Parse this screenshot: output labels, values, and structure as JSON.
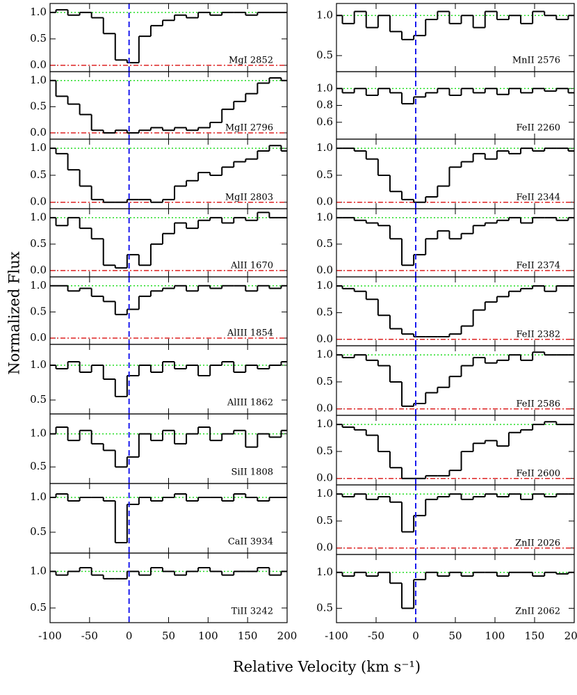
{
  "ylabel": "Normalized Flux",
  "xlabel": "Relative Velocity  (km s⁻¹)",
  "chart_data": [
    {
      "type": "line",
      "label": "MgI 2852",
      "x": [
        -100,
        -85,
        -70,
        -55,
        -40,
        -25,
        -10,
        5,
        20,
        35,
        50,
        65,
        80,
        95,
        110,
        125,
        140,
        155,
        170,
        185,
        200
      ],
      "values": [
        1.0,
        1.05,
        0.95,
        1.0,
        0.9,
        0.6,
        0.1,
        0.05,
        0.55,
        0.75,
        0.85,
        0.95,
        0.9,
        1.0,
        0.95,
        1.0,
        1.0,
        0.95,
        1.0,
        1.0,
        1.0
      ],
      "xlim": [
        -100,
        200
      ],
      "xticks": [
        -100,
        -50,
        0,
        50,
        100,
        150,
        200
      ],
      "ylim": [
        -0.12,
        1.17
      ],
      "yticks": [
        {
          "value": 0,
          "label": "0.0"
        },
        0.5,
        {
          "value": 1,
          "label": "1.0"
        }
      ]
    },
    {
      "type": "line",
      "label": "MgII 2796",
      "x": [
        -100,
        -85,
        -70,
        -55,
        -40,
        -25,
        -10,
        5,
        20,
        35,
        50,
        65,
        80,
        95,
        110,
        125,
        140,
        155,
        170,
        185,
        200
      ],
      "values": [
        1.0,
        0.7,
        0.55,
        0.35,
        0.05,
        0.0,
        0.05,
        0.0,
        0.05,
        0.1,
        0.05,
        0.1,
        0.05,
        0.1,
        0.2,
        0.45,
        0.6,
        0.75,
        0.95,
        1.05,
        1.0
      ],
      "xlim": [
        -100,
        200
      ],
      "xticks": [
        -100,
        -50,
        0,
        50,
        100,
        150,
        200
      ],
      "ylim": [
        -0.12,
        1.17
      ],
      "yticks": [
        {
          "value": 0,
          "label": "0.0"
        },
        0.5,
        {
          "value": 1,
          "label": "1.0"
        }
      ]
    },
    {
      "type": "line",
      "label": "MgII 2803",
      "x": [
        -100,
        -85,
        -70,
        -55,
        -40,
        -25,
        -10,
        5,
        20,
        35,
        50,
        65,
        80,
        95,
        110,
        125,
        140,
        155,
        170,
        185,
        200
      ],
      "values": [
        1.0,
        0.9,
        0.6,
        0.3,
        0.05,
        0.0,
        0.0,
        0.05,
        0.05,
        0.0,
        0.05,
        0.3,
        0.4,
        0.55,
        0.5,
        0.65,
        0.75,
        0.8,
        0.95,
        1.05,
        0.95
      ],
      "xlim": [
        -100,
        200
      ],
      "xticks": [
        -100,
        -50,
        0,
        50,
        100,
        150,
        200
      ],
      "ylim": [
        -0.12,
        1.17
      ],
      "yticks": [
        {
          "value": 0,
          "label": "0.0"
        },
        0.5,
        {
          "value": 1,
          "label": "1.0"
        }
      ]
    },
    {
      "type": "line",
      "label": "AlII 1670",
      "x": [
        -100,
        -85,
        -70,
        -55,
        -40,
        -25,
        -10,
        5,
        20,
        35,
        50,
        65,
        80,
        95,
        110,
        125,
        140,
        155,
        170,
        185,
        200
      ],
      "values": [
        1.0,
        0.85,
        1.0,
        0.8,
        0.6,
        0.1,
        0.05,
        0.3,
        0.1,
        0.5,
        0.7,
        0.9,
        0.8,
        0.95,
        1.0,
        0.9,
        1.0,
        0.95,
        1.1,
        1.0,
        1.0
      ],
      "xlim": [
        -100,
        200
      ],
      "xticks": [
        -100,
        -50,
        0,
        50,
        100,
        150,
        200
      ],
      "ylim": [
        -0.12,
        1.17
      ],
      "yticks": [
        {
          "value": 0,
          "label": "0.0"
        },
        0.5,
        {
          "value": 1,
          "label": "1.0"
        }
      ]
    },
    {
      "type": "line",
      "label": "AlIII 1854",
      "x": [
        -100,
        -85,
        -70,
        -55,
        -40,
        -25,
        -10,
        5,
        20,
        35,
        50,
        65,
        80,
        95,
        110,
        125,
        140,
        155,
        170,
        185,
        200
      ],
      "values": [
        1.0,
        1.0,
        0.9,
        0.95,
        0.8,
        0.7,
        0.45,
        0.55,
        0.8,
        0.9,
        0.95,
        1.0,
        0.9,
        1.0,
        0.95,
        1.0,
        1.0,
        0.9,
        1.0,
        0.95,
        1.0
      ],
      "xlim": [
        -100,
        200
      ],
      "xticks": [
        -100,
        -50,
        0,
        50,
        100,
        150,
        200
      ],
      "ylim": [
        -0.12,
        1.17
      ],
      "yticks": [
        {
          "value": 0,
          "label": "0.0"
        },
        0.5,
        {
          "value": 1,
          "label": "1.0"
        }
      ]
    },
    {
      "type": "line",
      "label": "AlIII 1862",
      "x": [
        -100,
        -85,
        -70,
        -55,
        -40,
        -25,
        -10,
        5,
        20,
        35,
        50,
        65,
        80,
        95,
        110,
        125,
        140,
        155,
        170,
        185,
        200
      ],
      "values": [
        1.0,
        0.95,
        1.05,
        0.9,
        1.0,
        0.8,
        0.55,
        0.85,
        1.0,
        0.9,
        1.05,
        0.95,
        1.0,
        0.85,
        1.0,
        1.05,
        0.9,
        1.0,
        0.95,
        1.0,
        1.05
      ],
      "xlim": [
        -100,
        200
      ],
      "xticks": [
        -100,
        -50,
        0,
        50,
        100,
        150,
        200
      ],
      "ylim": [
        0.3,
        1.3
      ],
      "yticks": [
        0.5,
        {
          "value": 1,
          "label": "1.0"
        }
      ]
    },
    {
      "type": "line",
      "label": "SiII 1808",
      "x": [
        -100,
        -85,
        -70,
        -55,
        -40,
        -25,
        -10,
        5,
        20,
        35,
        50,
        65,
        80,
        95,
        110,
        125,
        140,
        155,
        170,
        185,
        200
      ],
      "values": [
        1.0,
        1.1,
        0.9,
        1.05,
        0.85,
        0.75,
        0.5,
        0.65,
        1.0,
        0.9,
        1.05,
        0.85,
        1.0,
        1.1,
        0.9,
        1.0,
        1.05,
        0.8,
        1.0,
        0.95,
        1.05
      ],
      "xlim": [
        -100,
        200
      ],
      "xticks": [
        -100,
        -50,
        0,
        50,
        100,
        150,
        200
      ],
      "ylim": [
        0.25,
        1.3
      ],
      "yticks": [
        0.5,
        {
          "value": 1,
          "label": "1.0"
        }
      ]
    },
    {
      "type": "line",
      "label": "CaII 3934",
      "x": [
        -100,
        -85,
        -70,
        -55,
        -40,
        -25,
        -10,
        5,
        20,
        35,
        50,
        65,
        80,
        95,
        110,
        125,
        140,
        155,
        170,
        185,
        200
      ],
      "values": [
        1.0,
        1.05,
        0.95,
        1.0,
        1.0,
        0.95,
        0.35,
        0.9,
        1.0,
        0.95,
        1.0,
        1.05,
        0.95,
        1.0,
        1.0,
        0.95,
        1.05,
        1.0,
        0.95,
        1.0,
        1.0
      ],
      "xlim": [
        -100,
        200
      ],
      "xticks": [
        -100,
        -50,
        0,
        50,
        100,
        150,
        200
      ],
      "ylim": [
        0.2,
        1.2
      ],
      "yticks": [
        0.5,
        {
          "value": 1,
          "label": "1.0"
        }
      ]
    },
    {
      "type": "line",
      "label": "TiII 3242",
      "x": [
        -100,
        -85,
        -70,
        -55,
        -40,
        -25,
        -10,
        5,
        20,
        35,
        50,
        65,
        80,
        95,
        110,
        125,
        140,
        155,
        170,
        185,
        200
      ],
      "values": [
        1.0,
        0.95,
        1.0,
        1.05,
        0.95,
        0.9,
        0.9,
        1.0,
        0.95,
        1.05,
        1.0,
        0.95,
        1.0,
        1.05,
        1.0,
        0.95,
        1.0,
        1.0,
        1.05,
        0.95,
        1.0
      ],
      "xlim": [
        -100,
        200
      ],
      "xticks": [
        -100,
        -50,
        0,
        50,
        100,
        150,
        200
      ],
      "ylim": [
        0.3,
        1.25
      ],
      "yticks": [
        0.5,
        {
          "value": 1,
          "label": "1.0"
        }
      ]
    },
    {
      "type": "line",
      "label": "MnII 2576",
      "x": [
        -100,
        -85,
        -70,
        -55,
        -40,
        -25,
        -10,
        5,
        20,
        35,
        50,
        65,
        80,
        95,
        110,
        125,
        140,
        155,
        170,
        185,
        200
      ],
      "values": [
        1.0,
        0.9,
        1.05,
        0.85,
        1.0,
        0.8,
        0.7,
        0.75,
        0.95,
        1.05,
        0.9,
        1.0,
        0.85,
        1.05,
        0.95,
        1.0,
        0.9,
        1.05,
        1.0,
        0.95,
        1.0
      ],
      "xlim": [
        -100,
        200
      ],
      "xticks": [
        -100,
        -50,
        0,
        50,
        100,
        150,
        200
      ],
      "ylim": [
        0.3,
        1.15
      ],
      "yticks": [
        0.5,
        {
          "value": 1,
          "label": "1.0"
        }
      ]
    },
    {
      "type": "line",
      "label": "FeII 2260",
      "x": [
        -100,
        -85,
        -70,
        -55,
        -40,
        -25,
        -10,
        5,
        20,
        35,
        50,
        65,
        80,
        95,
        110,
        125,
        140,
        155,
        170,
        185,
        200
      ],
      "values": [
        1.0,
        0.95,
        1.0,
        0.92,
        1.0,
        0.95,
        0.82,
        0.9,
        0.95,
        1.0,
        0.92,
        1.0,
        0.95,
        1.0,
        0.93,
        1.0,
        0.95,
        1.0,
        0.97,
        1.0,
        0.95
      ],
      "xlim": [
        -100,
        200
      ],
      "xticks": [
        -100,
        -50,
        0,
        50,
        100,
        150,
        200
      ],
      "ylim": [
        0.4,
        1.2
      ],
      "yticks": [
        0.6,
        0.8,
        {
          "value": 1,
          "label": "1.0"
        }
      ]
    },
    {
      "type": "line",
      "label": "FeII 2344",
      "x": [
        -100,
        -85,
        -70,
        -55,
        -40,
        -25,
        -10,
        5,
        20,
        35,
        50,
        65,
        80,
        95,
        110,
        125,
        140,
        155,
        170,
        185,
        200
      ],
      "values": [
        1.0,
        1.0,
        0.95,
        0.8,
        0.5,
        0.2,
        0.05,
        0.0,
        0.1,
        0.3,
        0.65,
        0.75,
        0.9,
        0.8,
        0.95,
        0.9,
        1.0,
        0.95,
        1.0,
        1.0,
        0.95
      ],
      "xlim": [
        -100,
        200
      ],
      "xticks": [
        -100,
        -50,
        0,
        50,
        100,
        150,
        200
      ],
      "ylim": [
        -0.12,
        1.17
      ],
      "yticks": [
        {
          "value": 0,
          "label": "0.0"
        },
        0.5,
        {
          "value": 1,
          "label": "1.0"
        }
      ]
    },
    {
      "type": "line",
      "label": "FeII 2374",
      "x": [
        -100,
        -85,
        -70,
        -55,
        -40,
        -25,
        -10,
        5,
        20,
        35,
        50,
        65,
        80,
        95,
        110,
        125,
        140,
        155,
        170,
        185,
        200
      ],
      "values": [
        1.0,
        1.0,
        0.95,
        0.9,
        0.85,
        0.6,
        0.1,
        0.3,
        0.6,
        0.75,
        0.6,
        0.7,
        0.85,
        0.9,
        0.95,
        1.0,
        0.9,
        1.0,
        1.0,
        0.95,
        1.0
      ],
      "xlim": [
        -100,
        200
      ],
      "xticks": [
        -100,
        -50,
        0,
        50,
        100,
        150,
        200
      ],
      "ylim": [
        -0.12,
        1.17
      ],
      "yticks": [
        {
          "value": 0,
          "label": "0.0"
        },
        0.5,
        {
          "value": 1,
          "label": "1.0"
        }
      ]
    },
    {
      "type": "line",
      "label": "FeII 2382",
      "x": [
        -100,
        -85,
        -70,
        -55,
        -40,
        -25,
        -10,
        5,
        20,
        35,
        50,
        65,
        80,
        95,
        110,
        125,
        140,
        155,
        170,
        185,
        200
      ],
      "values": [
        1.0,
        0.95,
        0.9,
        0.75,
        0.45,
        0.2,
        0.1,
        0.05,
        0.05,
        0.05,
        0.1,
        0.25,
        0.55,
        0.7,
        0.8,
        0.9,
        0.95,
        1.0,
        0.9,
        1.0,
        1.0
      ],
      "xlim": [
        -100,
        200
      ],
      "xticks": [
        -100,
        -50,
        0,
        50,
        100,
        150,
        200
      ],
      "ylim": [
        -0.12,
        1.17
      ],
      "yticks": [
        {
          "value": 0,
          "label": "0.0"
        },
        0.5,
        {
          "value": 1,
          "label": "1.0"
        }
      ]
    },
    {
      "type": "line",
      "label": "FeII 2586",
      "x": [
        -100,
        -85,
        -70,
        -55,
        -40,
        -25,
        -10,
        5,
        20,
        35,
        50,
        65,
        80,
        95,
        110,
        125,
        140,
        155,
        170,
        185,
        200
      ],
      "values": [
        1.0,
        0.95,
        1.0,
        0.9,
        0.8,
        0.5,
        0.05,
        0.1,
        0.3,
        0.4,
        0.6,
        0.8,
        0.95,
        0.85,
        0.9,
        1.0,
        0.9,
        1.05,
        1.0,
        1.0,
        1.0
      ],
      "xlim": [
        -100,
        200
      ],
      "xticks": [
        -100,
        -50,
        0,
        50,
        100,
        150,
        200
      ],
      "ylim": [
        -0.12,
        1.17
      ],
      "yticks": [
        {
          "value": 0,
          "label": "0.0"
        },
        0.5,
        {
          "value": 1,
          "label": "1.0"
        }
      ]
    },
    {
      "type": "line",
      "label": "FeII 2600",
      "x": [
        -100,
        -85,
        -70,
        -55,
        -40,
        -25,
        -10,
        5,
        20,
        35,
        50,
        65,
        80,
        95,
        110,
        125,
        140,
        155,
        170,
        185,
        200
      ],
      "values": [
        1.0,
        0.95,
        0.9,
        0.8,
        0.5,
        0.2,
        0.0,
        0.0,
        0.05,
        0.05,
        0.15,
        0.5,
        0.65,
        0.7,
        0.6,
        0.85,
        0.9,
        1.0,
        1.05,
        1.0,
        1.0
      ],
      "xlim": [
        -100,
        200
      ],
      "xticks": [
        -100,
        -50,
        0,
        50,
        100,
        150,
        200
      ],
      "ylim": [
        -0.12,
        1.17
      ],
      "yticks": [
        {
          "value": 0,
          "label": "0.0"
        },
        0.5,
        {
          "value": 1,
          "label": "1.0"
        }
      ]
    },
    {
      "type": "line",
      "label": "ZnII 2026",
      "x": [
        -100,
        -85,
        -70,
        -55,
        -40,
        -25,
        -10,
        5,
        20,
        35,
        50,
        65,
        80,
        95,
        110,
        125,
        140,
        155,
        170,
        185,
        200
      ],
      "values": [
        1.0,
        0.95,
        1.0,
        0.9,
        0.95,
        0.85,
        0.3,
        0.6,
        0.9,
        0.95,
        1.0,
        0.9,
        0.95,
        1.0,
        0.95,
        1.0,
        0.9,
        1.0,
        0.95,
        1.0,
        1.0
      ],
      "xlim": [
        -100,
        200
      ],
      "xticks": [
        -100,
        -50,
        0,
        50,
        100,
        150,
        200
      ],
      "ylim": [
        -0.12,
        1.17
      ],
      "yticks": [
        {
          "value": 0,
          "label": "0.0"
        },
        0.5,
        {
          "value": 1,
          "label": "1.0"
        }
      ]
    },
    {
      "type": "line",
      "label": "ZnII 2062",
      "x": [
        -100,
        -85,
        -70,
        -55,
        -40,
        -25,
        -10,
        5,
        20,
        35,
        50,
        65,
        80,
        95,
        110,
        125,
        140,
        155,
        170,
        185,
        200
      ],
      "values": [
        1.0,
        0.95,
        1.0,
        0.95,
        1.0,
        0.85,
        0.5,
        0.9,
        1.0,
        0.95,
        1.0,
        0.95,
        1.0,
        1.0,
        0.95,
        1.0,
        1.0,
        0.95,
        1.0,
        0.98,
        1.0
      ],
      "xlim": [
        -100,
        200
      ],
      "xticks": [
        -100,
        -50,
        0,
        50,
        100,
        150,
        200
      ],
      "ylim": [
        0.3,
        1.25
      ],
      "yticks": [
        0.5,
        {
          "value": 1,
          "label": "1.0"
        }
      ]
    }
  ]
}
